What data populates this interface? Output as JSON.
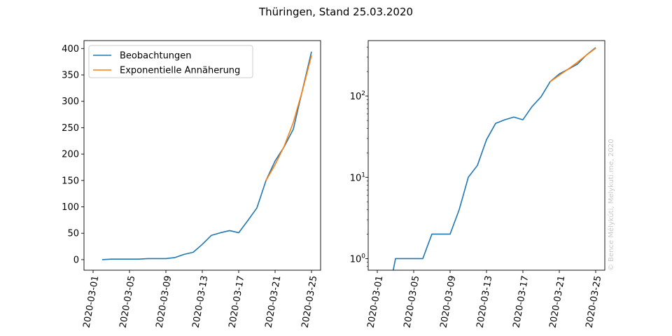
{
  "title": "Thüringen, Stand 25.03.2020",
  "watermark": "© Bence Mélykúti, Melykuti.me, 2020",
  "colors": {
    "observed": "#1f77b4",
    "fit": "#ff7f0e"
  },
  "chart_data": [
    {
      "type": "line",
      "yscale": "linear",
      "ylim": [
        -20,
        415
      ],
      "yticks": [
        "0",
        "50",
        "100",
        "150",
        "200",
        "250",
        "300",
        "350",
        "400"
      ],
      "xlim": [
        "2020-02-29",
        "2020-03-26"
      ],
      "xticks": [
        "2020-03-01",
        "2020-03-05",
        "2020-03-09",
        "2020-03-13",
        "2020-03-17",
        "2020-03-21",
        "2020-03-25"
      ],
      "legend": {
        "location": "upper left",
        "entries": [
          "Beobachtungen",
          "Exponentielle Annäherung"
        ]
      },
      "series": [
        {
          "name": "Beobachtungen",
          "x": [
            "2020-03-02",
            "2020-03-03",
            "2020-03-04",
            "2020-03-05",
            "2020-03-06",
            "2020-03-07",
            "2020-03-08",
            "2020-03-09",
            "2020-03-10",
            "2020-03-11",
            "2020-03-12",
            "2020-03-13",
            "2020-03-14",
            "2020-03-15",
            "2020-03-16",
            "2020-03-17",
            "2020-03-18",
            "2020-03-19",
            "2020-03-20",
            "2020-03-21",
            "2020-03-22",
            "2020-03-23",
            "2020-03-24",
            "2020-03-25"
          ],
          "y": [
            0,
            1,
            1,
            1,
            1,
            2,
            2,
            2,
            4,
            10,
            14,
            29,
            46,
            51,
            55,
            51,
            74,
            98,
            150,
            187,
            214,
            247,
            321,
            394
          ]
        },
        {
          "name": "Exponentielle Annäherung",
          "x": [
            "2020-03-20",
            "2020-03-21",
            "2020-03-22",
            "2020-03-23",
            "2020-03-24",
            "2020-03-25"
          ],
          "y": [
            150,
            180,
            215,
            260,
            320,
            387
          ]
        }
      ]
    },
    {
      "type": "line",
      "yscale": "log",
      "ylim": [
        0.72,
        480
      ],
      "yticks": [
        {
          "base": "10",
          "exp": "0",
          "value": 1
        },
        {
          "base": "10",
          "exp": "1",
          "value": 10
        },
        {
          "base": "10",
          "exp": "2",
          "value": 100
        }
      ],
      "xlim": [
        "2020-02-29",
        "2020-03-26"
      ],
      "xticks": [
        "2020-03-01",
        "2020-03-05",
        "2020-03-09",
        "2020-03-13",
        "2020-03-17",
        "2020-03-21",
        "2020-03-25"
      ],
      "series": [
        {
          "name": "Beobachtungen",
          "x": [
            "2020-03-02",
            "2020-03-03",
            "2020-03-04",
            "2020-03-05",
            "2020-03-06",
            "2020-03-07",
            "2020-03-08",
            "2020-03-09",
            "2020-03-10",
            "2020-03-11",
            "2020-03-12",
            "2020-03-13",
            "2020-03-14",
            "2020-03-15",
            "2020-03-16",
            "2020-03-17",
            "2020-03-18",
            "2020-03-19",
            "2020-03-20",
            "2020-03-21",
            "2020-03-22",
            "2020-03-23",
            "2020-03-24",
            "2020-03-25"
          ],
          "y": [
            0,
            1,
            1,
            1,
            1,
            2,
            2,
            2,
            4,
            10,
            14,
            29,
            46,
            51,
            55,
            51,
            74,
            98,
            150,
            187,
            214,
            247,
            321,
            394
          ]
        },
        {
          "name": "Exponentielle Annäherung",
          "x": [
            "2020-03-20",
            "2020-03-21",
            "2020-03-22",
            "2020-03-23",
            "2020-03-24",
            "2020-03-25"
          ],
          "y": [
            150,
            180,
            215,
            260,
            320,
            387
          ]
        }
      ]
    }
  ]
}
